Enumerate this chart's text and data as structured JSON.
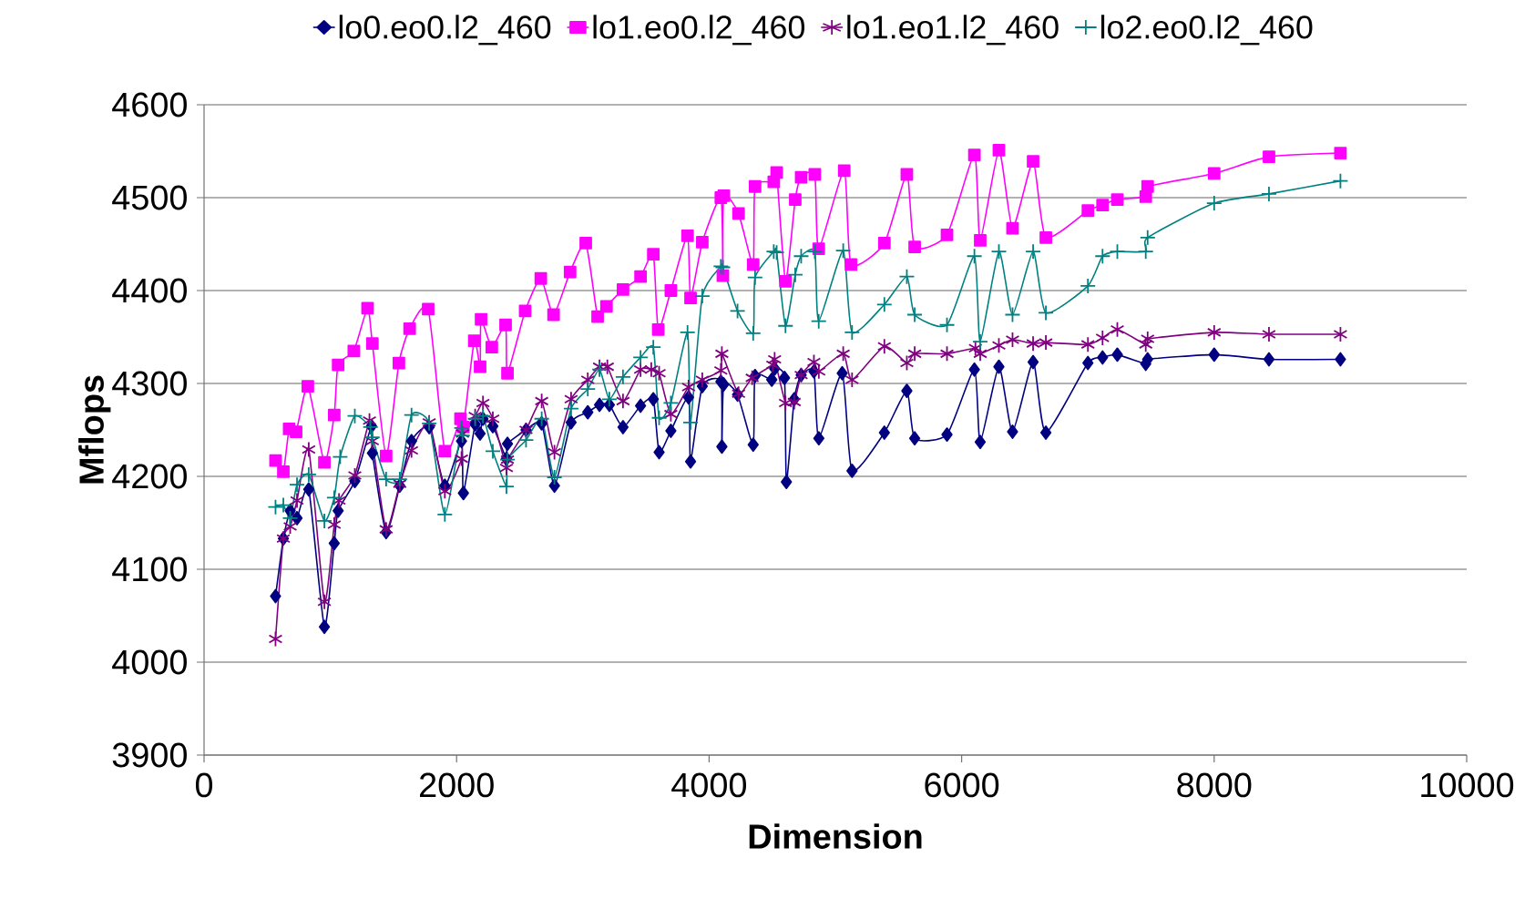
{
  "chart_data": {
    "type": "line",
    "xlabel": "Dimension",
    "ylabel": "Mflops",
    "xlim": [
      0,
      10000
    ],
    "xticks": [
      0,
      2000,
      4000,
      6000,
      8000,
      10000
    ],
    "ylim": [
      3900,
      4600
    ],
    "yticks": [
      3900,
      4000,
      4100,
      4200,
      4300,
      4400,
      4500,
      4600
    ],
    "grid": "y",
    "legend": "top",
    "series": [
      {
        "name": "lo0.eo0.l2_460",
        "color": "#000080",
        "marker": "diamond",
        "x": [
          566,
          628,
          682,
          736,
          829,
          953,
          1031,
          1062,
          1194,
          1326,
          1333,
          1442,
          1550,
          1643,
          1783,
          1907,
          2039,
          2054,
          2147,
          2186,
          2209,
          2287,
          2395,
          2403,
          2550,
          2674,
          2775,
          2907,
          3039,
          3132,
          3210,
          3318,
          3457,
          3558,
          3604,
          3697,
          3837,
          3853,
          3946,
          4093,
          4101,
          4116,
          4225,
          4349,
          4364,
          4496,
          4519,
          4597,
          4612,
          4674,
          4729,
          4830,
          4869,
          5054,
          5132,
          5388,
          5566,
          5628,
          5884,
          6101,
          6147,
          6295,
          6403,
          6566,
          6667,
          7000,
          7116,
          7233,
          7458,
          7473,
          8000,
          8434,
          9000
        ],
        "values": [
          4071,
          4133,
          4163,
          4155,
          4186,
          4038,
          4128,
          4163,
          4195,
          4254,
          4225,
          4140,
          4190,
          4238,
          4253,
          4190,
          4238,
          4182,
          4256,
          4246,
          4262,
          4254,
          4219,
          4235,
          4250,
          4257,
          4190,
          4258,
          4269,
          4277,
          4277,
          4253,
          4276,
          4283,
          4226,
          4249,
          4285,
          4216,
          4297,
          4302,
          4232,
          4299,
          4288,
          4234,
          4308,
          4304,
          4316,
          4306,
          4194,
          4283,
          4309,
          4313,
          4241,
          4311,
          4206,
          4247,
          4292,
          4241,
          4245,
          4315,
          4237,
          4318,
          4248,
          4323,
          4247,
          4322,
          4328,
          4331,
          4321,
          4326,
          4331,
          4326,
          4326
        ]
      },
      {
        "name": "lo1.eo0.l2_460",
        "color": "#ff00ff",
        "marker": "square",
        "x": [
          566,
          628,
          674,
          729,
          822,
          953,
          1031,
          1062,
          1186,
          1295,
          1333,
          1442,
          1543,
          1628,
          1775,
          1907,
          2031,
          2054,
          2140,
          2186,
          2194,
          2279,
          2388,
          2403,
          2543,
          2667,
          2768,
          2899,
          3023,
          3117,
          3187,
          3318,
          3457,
          3558,
          3597,
          3697,
          3829,
          3853,
          3946,
          4093,
          4109,
          4116,
          4233,
          4349,
          4364,
          4512,
          4535,
          4605,
          4682,
          4729,
          4837,
          4868,
          5070,
          5124,
          5388,
          5566,
          5628,
          5884,
          6101,
          6147,
          6295,
          6403,
          6566,
          6667,
          7000,
          7116,
          7233,
          7458,
          7473,
          8000,
          8434,
          9000
        ],
        "values": [
          4217,
          4205,
          4251,
          4248,
          4297,
          4215,
          4266,
          4320,
          4335,
          4381,
          4343,
          4222,
          4322,
          4359,
          4380,
          4227,
          4262,
          4253,
          4346,
          4318,
          4369,
          4339,
          4363,
          4311,
          4378,
          4413,
          4374,
          4420,
          4451,
          4372,
          4383,
          4401,
          4415,
          4439,
          4358,
          4400,
          4459,
          4392,
          4452,
          4500,
          4416,
          4502,
          4483,
          4428,
          4512,
          4517,
          4527,
          4410,
          4498,
          4522,
          4525,
          4445,
          4529,
          4428,
          4451,
          4525,
          4447,
          4460,
          4546,
          4454,
          4551,
          4467,
          4539,
          4457,
          4486,
          4492,
          4498,
          4501,
          4512,
          4526,
          4544,
          4548
        ]
      },
      {
        "name": "lo1.eo1.l2_460",
        "color": "#800080",
        "marker": "cross",
        "x": [
          566,
          628,
          682,
          736,
          829,
          953,
          1031,
          1069,
          1194,
          1310,
          1333,
          1442,
          1550,
          1643,
          1783,
          1907,
          2039,
          2047,
          2147,
          2209,
          2287,
          2395,
          2403,
          2550,
          2674,
          2775,
          2907,
          3039,
          3132,
          3194,
          3318,
          3457,
          3542,
          3604,
          3697,
          3837,
          3946,
          4093,
          4101,
          4233,
          4341,
          4504,
          4519,
          4605,
          4674,
          4729,
          4830,
          4869,
          5062,
          5132,
          5388,
          5566,
          5628,
          5884,
          6109,
          6147,
          6295,
          6403,
          6566,
          6667,
          7000,
          7116,
          7233,
          7458,
          7473,
          8000,
          8434,
          9000
        ],
        "values": [
          4025,
          4133,
          4146,
          4174,
          4229,
          4065,
          4148,
          4174,
          4201,
          4260,
          4238,
          4143,
          4192,
          4228,
          4258,
          4184,
          4219,
          4246,
          4265,
          4279,
          4262,
          4209,
          4218,
          4250,
          4281,
          4226,
          4283,
          4304,
          4318,
          4318,
          4281,
          4315,
          4315,
          4311,
          4267,
          4296,
          4304,
          4314,
          4332,
          4289,
          4306,
          4320,
          4326,
          4279,
          4280,
          4309,
          4323,
          4313,
          4332,
          4304,
          4340,
          4322,
          4332,
          4332,
          4338,
          4332,
          4341,
          4347,
          4343,
          4344,
          4342,
          4349,
          4358,
          4342,
          4348,
          4355,
          4353,
          4353
        ]
      },
      {
        "name": "lo2.eo0.l2_460",
        "color": "#008080",
        "marker": "cross",
        "x": [
          566,
          628,
          682,
          736,
          829,
          953,
          1031,
          1078,
          1194,
          1318,
          1333,
          1442,
          1550,
          1643,
          1783,
          1907,
          2039,
          2047,
          2147,
          2209,
          2287,
          2395,
          2403,
          2550,
          2674,
          2775,
          2907,
          3039,
          3132,
          3210,
          3318,
          3457,
          3558,
          3604,
          3697,
          3829,
          3853,
          3946,
          4093,
          4109,
          4225,
          4349,
          4364,
          4512,
          4535,
          4605,
          4682,
          4729,
          4837,
          4868,
          5062,
          5132,
          5388,
          5566,
          5628,
          5884,
          6101,
          6147,
          6295,
          6403,
          6566,
          6667,
          7000,
          7116,
          7233,
          7458,
          7473,
          8000,
          8434,
          9000
        ],
        "values": [
          4167,
          4169,
          4155,
          4191,
          4202,
          4152,
          4177,
          4221,
          4265,
          4253,
          4242,
          4197,
          4197,
          4266,
          4257,
          4159,
          4252,
          4244,
          4262,
          4265,
          4227,
          4189,
          4218,
          4239,
          4262,
          4199,
          4273,
          4294,
          4315,
          4283,
          4307,
          4328,
          4339,
          4263,
          4279,
          4355,
          4258,
          4394,
          4426,
          4425,
          4378,
          4354,
          4414,
          4442,
          4441,
          4362,
          4417,
          4437,
          4442,
          4367,
          4443,
          4355,
          4385,
          4415,
          4374,
          4363,
          4437,
          4345,
          4442,
          4374,
          4442,
          4376,
          4405,
          4437,
          4442,
          4442,
          4457,
          4494,
          4504,
          4518
        ]
      }
    ]
  }
}
